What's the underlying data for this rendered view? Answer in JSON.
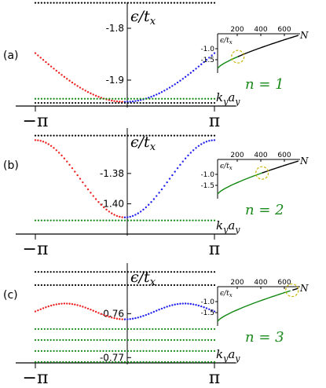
{
  "colors": {
    "red": "#ee2222",
    "blue": "#2222ee",
    "green": "#118811",
    "black": "#000000",
    "circle": "#c8b400"
  },
  "common": {
    "ylabel": "ϵ/t",
    "ylabel_sub": "x",
    "xlabel": "k",
    "xlabel_sub1": "y",
    "xlabel_mid": "a",
    "xlabel_sub2": "y",
    "x_tick_left": "−π",
    "x_tick_right": "π"
  },
  "chart_data": [
    {
      "type": "scatter",
      "label": "(a)",
      "n_label": "n = 1",
      "xlim": [
        -3.1416,
        3.1416
      ],
      "ylim": [
        -1.95,
        -1.75
      ],
      "yticks": [
        "-1.8",
        "-1.9"
      ],
      "ytick_values": [
        -1.8,
        -1.9
      ],
      "series": [
        {
          "color": "red",
          "kind": "cosine_left",
          "center": -1.848,
          "amp": 0.094,
          "period_frac": 1
        },
        {
          "color": "blue",
          "kind": "cosine_right",
          "center": -1.848,
          "amp": 0.094,
          "period_frac": 1
        },
        {
          "color": "black",
          "kind": "flat",
          "levels": [
            -1.751,
            -1.944
          ]
        },
        {
          "color": "green",
          "kind": "flat",
          "levels": [
            -1.936
          ]
        }
      ],
      "inset": {
        "xticks": [
          "200",
          "400",
          "600"
        ],
        "yticks": [
          "-1.0",
          "-1.5"
        ],
        "xlabel": "N",
        "ylabel": "ϵ/t",
        "ylabel_sub": "x",
        "circle_at": 0.25
      }
    },
    {
      "type": "scatter",
      "label": "(b)",
      "n_label": "n = 2",
      "xlim": [
        -3.1416,
        3.1416
      ],
      "ylim": [
        -1.42,
        -1.35
      ],
      "yticks": [
        "-1.38",
        "-1.40"
      ],
      "ytick_values": [
        -1.38,
        -1.4
      ],
      "series": [
        {
          "color": "red",
          "kind": "cosine_left2",
          "center": -1.3835,
          "amp": 0.0255
        },
        {
          "color": "blue",
          "kind": "cosine_right2",
          "center": -1.3835,
          "amp": 0.0255
        },
        {
          "color": "black",
          "kind": "flat",
          "levels": [
            -1.355
          ]
        },
        {
          "color": "green",
          "kind": "flat",
          "levels": [
            -1.411
          ]
        }
      ],
      "inset": {
        "xticks": [
          "200",
          "400",
          "600"
        ],
        "yticks": [
          "-1.0",
          "-1.5"
        ],
        "xlabel": "N",
        "ylabel": "ϵ/t",
        "ylabel_sub": "x",
        "circle_at": 0.55
      }
    },
    {
      "type": "scatter",
      "label": "(c)",
      "n_label": "n = 3",
      "xlim": [
        -3.1416,
        3.1416
      ],
      "ylim": [
        -0.7712,
        -0.7485
      ],
      "yticks": [
        "-0.76",
        "-0.77"
      ],
      "ytick_values": [
        -0.76,
        -0.77
      ],
      "series": [
        {
          "color": "red",
          "kind": "cosine_left3",
          "center": -0.7595,
          "amp": 0.0018
        },
        {
          "color": "blue",
          "kind": "cosine_right3",
          "center": -0.7595,
          "amp": 0.0018
        },
        {
          "color": "black",
          "kind": "flat",
          "levels": [
            -0.7505,
            -0.7535
          ]
        },
        {
          "color": "green",
          "kind": "flat",
          "levels": [
            -0.7635,
            -0.766,
            -0.7685,
            -0.771
          ]
        }
      ],
      "inset": {
        "xticks": [
          "200",
          "400",
          "600"
        ],
        "yticks": [
          "-1.0",
          "-1.5"
        ],
        "xlabel": "N",
        "ylabel": "ϵ/t",
        "ylabel_sub": "x",
        "circle_at": 0.92
      }
    }
  ]
}
